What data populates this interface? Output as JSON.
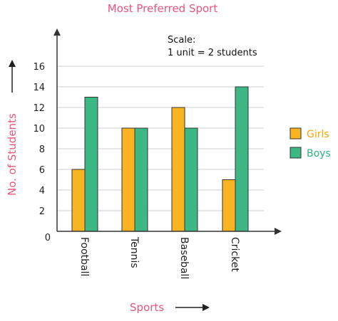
{
  "chart_data": {
    "type": "bar",
    "title": "Most Preferred Sport",
    "xlabel": "Sports",
    "ylabel": "No. of Students",
    "categories": [
      "Football",
      "Tennis",
      "Baseball",
      "Cricket"
    ],
    "series": [
      {
        "name": "Girls",
        "values": [
          6,
          10,
          12,
          5
        ],
        "color": "#fbb421"
      },
      {
        "name": "Boys",
        "values": [
          13,
          10,
          10,
          14
        ],
        "color": "#3db884"
      }
    ],
    "ylim": [
      0,
      16
    ],
    "yticks": [
      0,
      2,
      4,
      6,
      8,
      10,
      12,
      14,
      16
    ],
    "grid": true,
    "legend": "right",
    "scale_note": {
      "line1": "Scale:",
      "line2": "1 unit = 2 students"
    }
  }
}
